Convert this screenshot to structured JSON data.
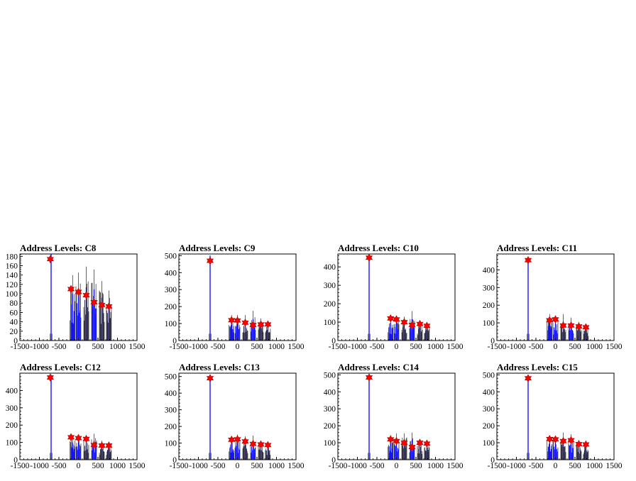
{
  "colors": {
    "histogram": "#0000ff",
    "outline": "#000000",
    "marker": "#ff0000"
  },
  "chart_data": [
    {
      "type": "bar",
      "title": "Address Levels: C8",
      "xlim": [
        -1500,
        1500
      ],
      "ylim": [
        0,
        185
      ],
      "xticks": [
        -1500,
        -1000,
        -500,
        0,
        500,
        1000,
        1500
      ],
      "yticks": [
        0,
        20,
        40,
        60,
        80,
        100,
        120,
        140,
        160,
        180
      ],
      "peaks": [
        {
          "x": -700,
          "height": 185
        },
        {
          "x": -150,
          "height": 140
        },
        {
          "x": 0,
          "height": 145
        },
        {
          "x": 200,
          "height": 158
        },
        {
          "x": 400,
          "height": 152
        },
        {
          "x": 600,
          "height": 127
        },
        {
          "x": 780,
          "height": 107
        }
      ],
      "markers": [
        {
          "x": -720,
          "y": 174
        },
        {
          "x": -190,
          "y": 110
        },
        {
          "x": 0,
          "y": 104
        },
        {
          "x": 200,
          "y": 97
        },
        {
          "x": 400,
          "y": 82
        },
        {
          "x": 600,
          "y": 76
        },
        {
          "x": 780,
          "y": 73
        }
      ]
    },
    {
      "type": "bar",
      "title": "Address Levels: C9",
      "xlim": [
        -1500,
        1500
      ],
      "ylim": [
        0,
        510
      ],
      "xticks": [
        -1500,
        -1000,
        -500,
        0,
        500,
        1000,
        1500
      ],
      "yticks": [
        0,
        100,
        200,
        300,
        400,
        500
      ],
      "peaks": [
        {
          "x": -700,
          "height": 500
        },
        {
          "x": -150,
          "height": 150
        },
        {
          "x": 0,
          "height": 150
        },
        {
          "x": 200,
          "height": 150
        },
        {
          "x": 400,
          "height": 175
        },
        {
          "x": 600,
          "height": 130
        },
        {
          "x": 780,
          "height": 110
        }
      ],
      "markers": [
        {
          "x": -700,
          "y": 470
        },
        {
          "x": -150,
          "y": 120
        },
        {
          "x": 0,
          "y": 118
        },
        {
          "x": 200,
          "y": 105
        },
        {
          "x": 400,
          "y": 92
        },
        {
          "x": 600,
          "y": 95
        },
        {
          "x": 780,
          "y": 95
        }
      ]
    },
    {
      "type": "bar",
      "title": "Address Levels: C10",
      "xlim": [
        -1500,
        1500
      ],
      "ylim": [
        0,
        470
      ],
      "xticks": [
        -1500,
        -1000,
        -500,
        0,
        500,
        1000,
        1500
      ],
      "yticks": [
        0,
        100,
        200,
        300,
        400
      ],
      "peaks": [
        {
          "x": -700,
          "height": 460
        },
        {
          "x": -150,
          "height": 135
        },
        {
          "x": 0,
          "height": 135
        },
        {
          "x": 200,
          "height": 130
        },
        {
          "x": 400,
          "height": 160
        },
        {
          "x": 600,
          "height": 110
        },
        {
          "x": 780,
          "height": 95
        }
      ],
      "markers": [
        {
          "x": -700,
          "y": 450
        },
        {
          "x": -150,
          "y": 120
        },
        {
          "x": 0,
          "y": 115
        },
        {
          "x": 200,
          "y": 100
        },
        {
          "x": 400,
          "y": 85
        },
        {
          "x": 600,
          "y": 90
        },
        {
          "x": 780,
          "y": 80
        }
      ]
    },
    {
      "type": "bar",
      "title": "Address Levels: C11",
      "xlim": [
        -1500,
        1500
      ],
      "ylim": [
        0,
        490
      ],
      "xticks": [
        -1500,
        -1000,
        -500,
        0,
        500,
        1000,
        1500
      ],
      "yticks": [
        0,
        100,
        200,
        300,
        400
      ],
      "peaks": [
        {
          "x": -700,
          "height": 470
        },
        {
          "x": -150,
          "height": 150
        },
        {
          "x": 0,
          "height": 135
        },
        {
          "x": 200,
          "height": 150
        },
        {
          "x": 400,
          "height": 130
        },
        {
          "x": 600,
          "height": 105
        },
        {
          "x": 780,
          "height": 95
        }
      ],
      "markers": [
        {
          "x": -700,
          "y": 455
        },
        {
          "x": -150,
          "y": 115
        },
        {
          "x": 0,
          "y": 120
        },
        {
          "x": 200,
          "y": 85
        },
        {
          "x": 400,
          "y": 85
        },
        {
          "x": 600,
          "y": 80
        },
        {
          "x": 780,
          "y": 75
        }
      ]
    },
    {
      "type": "bar",
      "title": "Address Levels: C12",
      "xlim": [
        -1500,
        1500
      ],
      "ylim": [
        0,
        500
      ],
      "xticks": [
        -1500,
        -1000,
        -500,
        0,
        500,
        1000,
        1500
      ],
      "yticks": [
        0,
        100,
        200,
        300,
        400
      ],
      "peaks": [
        {
          "x": -700,
          "height": 490
        },
        {
          "x": -150,
          "height": 140
        },
        {
          "x": 0,
          "height": 140
        },
        {
          "x": 200,
          "height": 140
        },
        {
          "x": 400,
          "height": 150
        },
        {
          "x": 600,
          "height": 110
        },
        {
          "x": 780,
          "height": 100
        }
      ],
      "markers": [
        {
          "x": -720,
          "y": 475
        },
        {
          "x": -190,
          "y": 130
        },
        {
          "x": 0,
          "y": 125
        },
        {
          "x": 200,
          "y": 120
        },
        {
          "x": 400,
          "y": 85
        },
        {
          "x": 600,
          "y": 82
        },
        {
          "x": 780,
          "y": 82
        }
      ]
    },
    {
      "type": "bar",
      "title": "Address Levels: C13",
      "xlim": [
        -1500,
        1500
      ],
      "ylim": [
        0,
        520
      ],
      "xticks": [
        -1500,
        -1000,
        -500,
        0,
        500,
        1000,
        1500
      ],
      "yticks": [
        0,
        100,
        200,
        300,
        400,
        500
      ],
      "peaks": [
        {
          "x": -700,
          "height": 510
        },
        {
          "x": -150,
          "height": 140
        },
        {
          "x": 0,
          "height": 150
        },
        {
          "x": 200,
          "height": 140
        },
        {
          "x": 400,
          "height": 145
        },
        {
          "x": 600,
          "height": 115
        },
        {
          "x": 780,
          "height": 100
        }
      ],
      "markers": [
        {
          "x": -700,
          "y": 490
        },
        {
          "x": -150,
          "y": 120
        },
        {
          "x": 0,
          "y": 123
        },
        {
          "x": 200,
          "y": 110
        },
        {
          "x": 400,
          "y": 95
        },
        {
          "x": 600,
          "y": 92
        },
        {
          "x": 780,
          "y": 88
        }
      ]
    },
    {
      "type": "bar",
      "title": "Address Levels: C14",
      "xlim": [
        -1500,
        1500
      ],
      "ylim": [
        0,
        510
      ],
      "xticks": [
        -1500,
        -1000,
        -500,
        0,
        500,
        1000,
        1500
      ],
      "yticks": [
        0,
        100,
        200,
        300,
        400,
        500
      ],
      "peaks": [
        {
          "x": -700,
          "height": 500
        },
        {
          "x": -150,
          "height": 145
        },
        {
          "x": 0,
          "height": 155
        },
        {
          "x": 200,
          "height": 155
        },
        {
          "x": 400,
          "height": 160
        },
        {
          "x": 600,
          "height": 115
        },
        {
          "x": 780,
          "height": 100
        }
      ],
      "markers": [
        {
          "x": -700,
          "y": 485
        },
        {
          "x": -150,
          "y": 120
        },
        {
          "x": 0,
          "y": 110
        },
        {
          "x": 200,
          "y": 100
        },
        {
          "x": 400,
          "y": 75
        },
        {
          "x": 600,
          "y": 100
        },
        {
          "x": 780,
          "y": 95
        }
      ]
    },
    {
      "type": "bar",
      "title": "Address Levels: C15",
      "xlim": [
        -1500,
        1500
      ],
      "ylim": [
        0,
        510
      ],
      "xticks": [
        -1500,
        -1000,
        -500,
        0,
        500,
        1000,
        1500
      ],
      "yticks": [
        0,
        100,
        200,
        300,
        400,
        500
      ],
      "peaks": [
        {
          "x": -700,
          "height": 500
        },
        {
          "x": -150,
          "height": 140
        },
        {
          "x": 0,
          "height": 140
        },
        {
          "x": 200,
          "height": 160
        },
        {
          "x": 400,
          "height": 150
        },
        {
          "x": 600,
          "height": 115
        },
        {
          "x": 780,
          "height": 100
        }
      ],
      "markers": [
        {
          "x": -700,
          "y": 480
        },
        {
          "x": -150,
          "y": 122
        },
        {
          "x": 0,
          "y": 120
        },
        {
          "x": 200,
          "y": 110
        },
        {
          "x": 400,
          "y": 115
        },
        {
          "x": 600,
          "y": 92
        },
        {
          "x": 780,
          "y": 90
        }
      ]
    }
  ]
}
